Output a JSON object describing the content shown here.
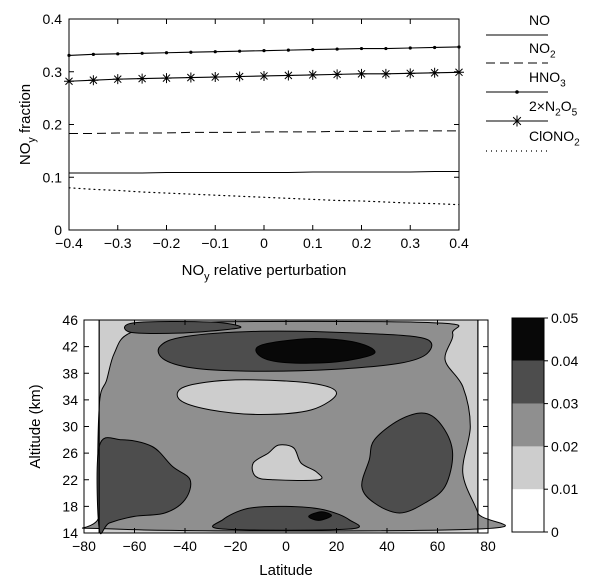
{
  "chart_data": [
    {
      "type": "line",
      "xlabel": "NO_y relative perturbation",
      "ylabel": "NO_y fraction",
      "xlim": [
        -0.4,
        0.4
      ],
      "ylim": [
        0,
        0.4
      ],
      "xticks": [
        -0.4,
        -0.3,
        -0.2,
        -0.1,
        0,
        0.1,
        0.2,
        0.3,
        0.4
      ],
      "xtick_labels": [
        "−0.4",
        "−0.3",
        "−0.2",
        "−0.1",
        "0",
        "0.1",
        "0.2",
        "0.3",
        "0.4"
      ],
      "yticks": [
        0,
        0.1,
        0.2,
        0.3,
        0.4
      ],
      "ytick_labels": [
        "0",
        "0.1",
        "0.2",
        "0.3",
        "0.4"
      ],
      "grid": false,
      "legend": "right",
      "x": [
        -0.4,
        -0.35,
        -0.3,
        -0.25,
        -0.2,
        -0.15,
        -0.1,
        -0.05,
        0,
        0.05,
        0.1,
        0.15,
        0.2,
        0.25,
        0.3,
        0.35,
        0.4
      ],
      "series": [
        {
          "name": "NO",
          "style": "solid",
          "values": [
            0.108,
            0.108,
            0.108,
            0.108,
            0.109,
            0.109,
            0.109,
            0.109,
            0.109,
            0.109,
            0.11,
            0.11,
            0.11,
            0.11,
            0.11,
            0.111,
            0.111
          ]
        },
        {
          "name": "NO_2",
          "style": "dashed",
          "values": [
            0.183,
            0.183,
            0.184,
            0.184,
            0.184,
            0.185,
            0.185,
            0.185,
            0.186,
            0.186,
            0.186,
            0.187,
            0.187,
            0.187,
            0.188,
            0.188,
            0.188
          ]
        },
        {
          "name": "HNO_3",
          "style": "dot-marker",
          "values": [
            0.331,
            0.333,
            0.334,
            0.335,
            0.336,
            0.337,
            0.338,
            0.339,
            0.34,
            0.341,
            0.342,
            0.343,
            0.344,
            0.344,
            0.345,
            0.346,
            0.347
          ]
        },
        {
          "name": "2×N_2O_5",
          "style": "star-marker",
          "values": [
            0.282,
            0.284,
            0.286,
            0.287,
            0.288,
            0.289,
            0.29,
            0.291,
            0.292,
            0.293,
            0.294,
            0.295,
            0.296,
            0.296,
            0.297,
            0.298,
            0.299
          ]
        },
        {
          "name": "ClONO_2",
          "style": "dotted",
          "values": [
            0.08,
            0.077,
            0.075,
            0.072,
            0.07,
            0.068,
            0.066,
            0.064,
            0.062,
            0.06,
            0.058,
            0.056,
            0.055,
            0.053,
            0.051,
            0.05,
            0.048
          ]
        }
      ]
    },
    {
      "type": "heatmap",
      "xlabel": "Latitude",
      "ylabel": "Altitude (km)",
      "xlim": [
        -80,
        80
      ],
      "ylim": [
        14,
        46
      ],
      "xticks": [
        -80,
        -60,
        -40,
        -20,
        0,
        20,
        40,
        60,
        80
      ],
      "xtick_labels": [
        "−80",
        "−60",
        "−40",
        "−20",
        "0",
        "20",
        "40",
        "60",
        "80"
      ],
      "yticks": [
        14,
        18,
        22,
        26,
        30,
        34,
        38,
        42,
        46
      ],
      "ytick_labels": [
        "14",
        "18",
        "22",
        "26",
        "30",
        "34",
        "38",
        "42",
        "46"
      ],
      "data_xlim": [
        -74,
        76
      ],
      "colorbar": {
        "levels": [
          0,
          0.01,
          0.02,
          0.03,
          0.04,
          0.05
        ],
        "tick_labels": [
          "0",
          "0.01",
          "0.02",
          "0.03",
          "0.04",
          "0.05"
        ],
        "colors": [
          "#ffffff",
          "#cdcdcd",
          "#8f8f8f",
          "#4d4d4d",
          "#080808"
        ]
      },
      "regions": [
        {
          "band": "0.02-0.03",
          "points": [
            [
              -74,
              17
            ],
            [
              -68,
              14.6
            ],
            [
              76,
              14.6
            ],
            [
              76,
              17
            ],
            [
              70,
              23
            ],
            [
              73,
              30
            ],
            [
              70,
              36
            ],
            [
              63,
              40
            ],
            [
              66,
              44
            ],
            [
              58,
              45.6
            ],
            [
              -42,
              45.6
            ],
            [
              -62,
              44
            ],
            [
              -68,
              41
            ],
            [
              -71,
              37
            ],
            [
              -74,
              33
            ]
          ]
        },
        {
          "band": "0.01-0.02",
          "points": [
            [
              -40,
              36
            ],
            [
              -20,
              37
            ],
            [
              10,
              36.5
            ],
            [
              20,
              35
            ],
            [
              10,
              32.5
            ],
            [
              -10,
              31.8
            ],
            [
              -30,
              32.5
            ],
            [
              -42,
              34
            ]
          ]
        },
        {
          "band": "0.01-0.02",
          "points": [
            [
              -12,
              22.5
            ],
            [
              -13,
              24.5
            ],
            [
              -7,
              26
            ],
            [
              -3,
              27.2
            ],
            [
              3,
              26.8
            ],
            [
              6,
              24.5
            ],
            [
              12,
              23.2
            ],
            [
              13,
              22
            ],
            [
              -5,
              22
            ]
          ]
        },
        {
          "band": "0.03-0.04",
          "points": [
            [
              -60,
              45.6
            ],
            [
              -30,
              45.7
            ],
            [
              -18,
              45
            ],
            [
              -25,
              44.5
            ],
            [
              -45,
              44
            ],
            [
              -62,
              44.2
            ]
          ]
        },
        {
          "band": "0.03-0.04",
          "points": [
            [
              -50,
              42
            ],
            [
              -40,
              43.5
            ],
            [
              -10,
              44.3
            ],
            [
              30,
              44
            ],
            [
              55,
              43.2
            ],
            [
              56,
              41
            ],
            [
              45,
              39.5
            ],
            [
              20,
              38.6
            ],
            [
              -10,
              38.3
            ],
            [
              -35,
              38.7
            ],
            [
              -48,
              40
            ]
          ]
        },
        {
          "band": "0.04-0.05",
          "points": [
            [
              -10,
              42.2
            ],
            [
              10,
              43.2
            ],
            [
              28,
              42.6
            ],
            [
              35,
              41
            ],
            [
              20,
              39.7
            ],
            [
              0,
              39.6
            ],
            [
              -10,
              40.5
            ]
          ]
        },
        {
          "band": "0.03-0.04",
          "points": [
            [
              -74,
              14.6
            ],
            [
              -74,
              27
            ],
            [
              -65,
              28
            ],
            [
              -53,
              27
            ],
            [
              -45,
              24
            ],
            [
              -38,
              22
            ],
            [
              -40,
              19
            ],
            [
              -48,
              17
            ],
            [
              -60,
              16.5
            ],
            [
              -70,
              15.5
            ]
          ]
        },
        {
          "band": "0.03-0.04",
          "points": [
            [
              35,
              28
            ],
            [
              45,
              31
            ],
            [
              55,
              32
            ],
            [
              62,
              30
            ],
            [
              66,
              26
            ],
            [
              63,
              21
            ],
            [
              55,
              18.5
            ],
            [
              45,
              17
            ],
            [
              35,
              18.5
            ],
            [
              30,
              21
            ],
            [
              33,
              25
            ]
          ]
        },
        {
          "band": "0.03-0.04",
          "points": [
            [
              -25,
              14.6
            ],
            [
              -25,
              16
            ],
            [
              -15,
              17.7
            ],
            [
              0,
              18
            ],
            [
              15,
              17.5
            ],
            [
              25,
              16
            ],
            [
              25,
              14.6
            ]
          ]
        },
        {
          "band": "0.04-0.05",
          "points": [
            [
              9,
              16.5
            ],
            [
              14,
              17.2
            ],
            [
              18,
              16.6
            ],
            [
              13,
              15.9
            ]
          ]
        }
      ]
    }
  ]
}
